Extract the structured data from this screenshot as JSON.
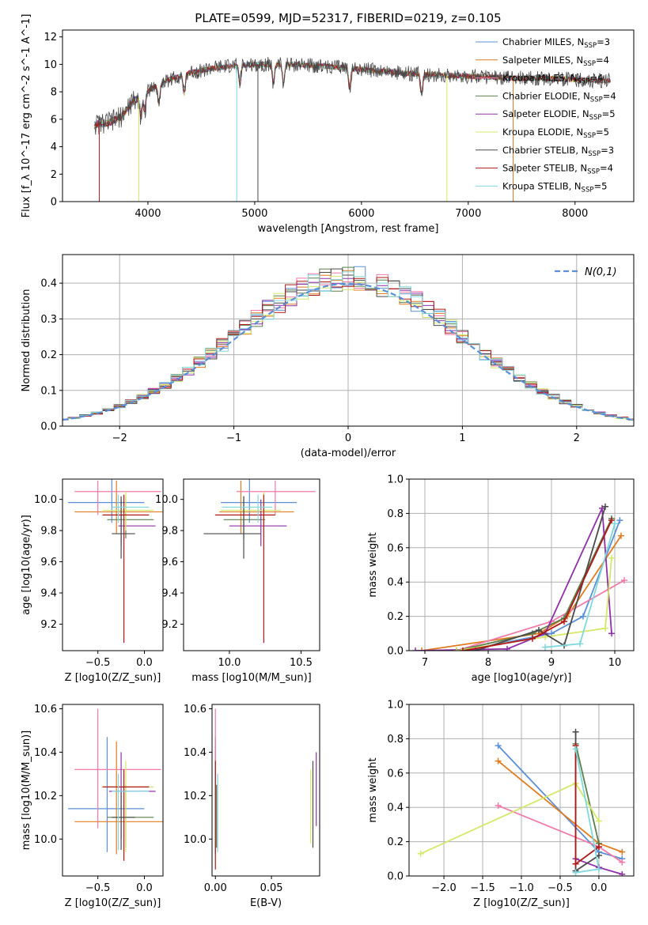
{
  "title": "PLATE=0599, MJD=52317, FIBERID=0219, z=0.105",
  "colors": {
    "Chabrier MILES": "#5b8fd6",
    "Salpeter MILES": "#e07b20",
    "Kroupa MILES": "#f07aa8",
    "Chabrier ELODIE": "#5c7f4e",
    "Salpeter ELODIE": "#9030a8",
    "Kroupa ELODIE": "#d5e86a",
    "Chabrier STELIB": "#4a4a4a",
    "Salpeter STELIB": "#b01818",
    "Kroupa STELIB": "#7fd8dc",
    "normal": "#5b8fd6"
  },
  "chart_data": [
    {
      "id": "spectrum",
      "type": "line",
      "xlabel": "wavelength [Angstrom, rest frame]",
      "ylabel": "Flux [f_λ 10^-17 erg cm^-2 s^-1 A^-1]",
      "xlim": [
        3200,
        8550
      ],
      "ylim": [
        0,
        12.5
      ],
      "xticks": [
        4000,
        5000,
        6000,
        7000,
        8000
      ],
      "yticks": [
        0,
        2,
        4,
        6,
        8,
        10,
        12
      ],
      "continuum": {
        "x": [
          3500,
          3650,
          3750,
          3850,
          3950,
          4050,
          4200,
          4400,
          4600,
          4800,
          5000,
          5300,
          5600,
          5900,
          6200,
          6500,
          6800,
          7100,
          7400,
          7700,
          8000,
          8300
        ],
        "y": [
          5.6,
          5.8,
          6.2,
          7.2,
          7.8,
          8.3,
          8.9,
          9.4,
          9.7,
          9.9,
          10.0,
          10.0,
          9.9,
          9.7,
          9.5,
          9.3,
          9.2,
          9.1,
          9.0,
          9.0,
          8.9,
          8.8
        ]
      },
      "legend_position": "upper-right",
      "series": [
        {
          "name": "Chabrier MILES, N_SSP=3",
          "label_main": "Chabrier MILES, N",
          "label_sub": "SSP",
          "label_end": "=3",
          "color_key": "Chabrier MILES"
        },
        {
          "name": "Salpeter MILES, N_SSP=4",
          "label_main": "Salpeter MILES, N",
          "label_sub": "SSP",
          "label_end": "=4",
          "color_key": "Salpeter MILES"
        },
        {
          "name": "Kroupa MILES, N_SSP=4",
          "label_main": "Kroupa MILES, N",
          "label_sub": "SSP",
          "label_end": "=4",
          "color_key": "Kroupa MILES"
        },
        {
          "name": "Chabrier ELODIE, N_SSP=4",
          "label_main": "Chabrier ELODIE, N",
          "label_sub": "SSP",
          "label_end": "=4",
          "color_key": "Chabrier ELODIE"
        },
        {
          "name": "Salpeter ELODIE, N_SSP=5",
          "label_main": "Salpeter ELODIE, N",
          "label_sub": "SSP",
          "label_end": "=5",
          "color_key": "Salpeter ELODIE"
        },
        {
          "name": "Kroupa ELODIE, N_SSP=5",
          "label_main": "Kroupa ELODIE, N",
          "label_sub": "SSP",
          "label_end": "=5",
          "color_key": "Kroupa ELODIE"
        },
        {
          "name": "Chabrier STELIB, N_SSP=3",
          "label_main": "Chabrier STELIB, N",
          "label_sub": "SSP",
          "label_end": "=3",
          "color_key": "Chabrier STELIB"
        },
        {
          "name": "Salpeter STELIB, N_SSP=4",
          "label_main": "Salpeter STELIB, N",
          "label_sub": "SSP",
          "label_end": "=4",
          "color_key": "Salpeter STELIB"
        },
        {
          "name": "Kroupa STELIB, N_SSP=5",
          "label_main": "Kroupa STELIB, N",
          "label_sub": "SSP",
          "label_end": "=5",
          "color_key": "Kroupa STELIB"
        }
      ]
    },
    {
      "id": "residuals",
      "type": "histogram",
      "xlabel": "(data-model)/error",
      "ylabel": "Normed distribution",
      "xlim": [
        -2.5,
        2.5
      ],
      "ylim": [
        0,
        0.48
      ],
      "xticks": [
        -2,
        -1,
        0,
        1,
        2
      ],
      "yticks": [
        0.0,
        0.1,
        0.2,
        0.3,
        0.4
      ],
      "bin_width": 0.1,
      "legend": "N(0,1)",
      "legend_position": "upper-right",
      "grid": true
    },
    {
      "id": "age_vs_Z",
      "type": "errorbar",
      "xlabel": "Z [log10(Z/Z_sun)]",
      "ylabel": "age [log10(age/yr)]",
      "xlim": [
        -0.88,
        0.2
      ],
      "ylim": [
        9.03,
        10.13
      ],
      "xticks": [
        -0.5,
        0.0
      ],
      "yticks": [
        9.2,
        9.4,
        9.6,
        9.8,
        10.0
      ],
      "points": [
        {
          "model": "Chabrier MILES",
          "x": -0.35,
          "xlo": -0.82,
          "xhi": 0.0,
          "y": 9.98,
          "ylo": 9.85,
          "yhi": 10.13
        },
        {
          "model": "Salpeter MILES",
          "x": -0.3,
          "xlo": -0.75,
          "xhi": 0.2,
          "y": 9.92,
          "ylo": 9.78,
          "yhi": 10.12
        },
        {
          "model": "Kroupa MILES",
          "x": -0.5,
          "xlo": -0.75,
          "xhi": 0.18,
          "y": 10.05,
          "ylo": 9.9,
          "yhi": 10.12
        },
        {
          "model": "Chabrier ELODIE",
          "x": -0.2,
          "xlo": -0.4,
          "xhi": 0.1,
          "y": 9.87,
          "ylo": 9.75,
          "yhi": 10.02
        },
        {
          "model": "Salpeter ELODIE",
          "x": -0.25,
          "xlo": -0.28,
          "xhi": 0.12,
          "y": 9.83,
          "ylo": 9.7,
          "yhi": 10.0
        },
        {
          "model": "Kroupa ELODIE",
          "x": -0.2,
          "xlo": -0.45,
          "xhi": 0.1,
          "y": 9.93,
          "ylo": 9.8,
          "yhi": 10.05
        },
        {
          "model": "Chabrier STELIB",
          "x": -0.25,
          "xlo": -0.35,
          "xhi": -0.1,
          "y": 9.78,
          "ylo": 9.62,
          "yhi": 10.02
        },
        {
          "model": "Salpeter STELIB",
          "x": -0.22,
          "xlo": -0.45,
          "xhi": 0.05,
          "y": 9.9,
          "ylo": 9.08,
          "yhi": 10.03
        },
        {
          "model": "Kroupa STELIB",
          "x": -0.28,
          "xlo": -0.35,
          "xhi": 0.05,
          "y": 9.95,
          "ylo": 9.85,
          "yhi": 10.03
        }
      ]
    },
    {
      "id": "age_vs_mass",
      "type": "errorbar",
      "xlabel": "mass [log10(M/M_sun)]",
      "ylabel": "",
      "xlim": [
        9.68,
        10.63
      ],
      "ylim": [
        9.03,
        10.13
      ],
      "xticks": [
        10.0,
        10.5
      ],
      "yticks": [
        9.2,
        9.4,
        9.6,
        9.8,
        10.0
      ],
      "points": [
        {
          "model": "Chabrier MILES",
          "x": 10.14,
          "xlo": 9.94,
          "xhi": 10.47,
          "y": 9.98,
          "ylo": 9.85,
          "yhi": 10.13
        },
        {
          "model": "Salpeter MILES",
          "x": 10.08,
          "xlo": 9.93,
          "xhi": 10.45,
          "y": 9.92,
          "ylo": 9.78,
          "yhi": 10.12
        },
        {
          "model": "Kroupa MILES",
          "x": 10.32,
          "xlo": 10.05,
          "xhi": 10.6,
          "y": 10.05,
          "ylo": 9.9,
          "yhi": 10.12
        },
        {
          "model": "Chabrier ELODIE",
          "x": 10.1,
          "xlo": 9.96,
          "xhi": 10.25,
          "y": 9.87,
          "ylo": 9.75,
          "yhi": 10.02
        },
        {
          "model": "Salpeter ELODIE",
          "x": 10.22,
          "xlo": 10.0,
          "xhi": 10.4,
          "y": 9.83,
          "ylo": 9.7,
          "yhi": 10.0
        },
        {
          "model": "Kroupa ELODIE",
          "x": 10.24,
          "xlo": 9.94,
          "xhi": 10.36,
          "y": 9.93,
          "ylo": 9.8,
          "yhi": 10.05
        },
        {
          "model": "Chabrier STELIB",
          "x": 10.1,
          "xlo": 9.82,
          "xhi": 10.22,
          "y": 9.78,
          "ylo": 9.62,
          "yhi": 10.02
        },
        {
          "model": "Salpeter STELIB",
          "x": 10.24,
          "xlo": 9.9,
          "xhi": 10.32,
          "y": 9.9,
          "ylo": 9.08,
          "yhi": 10.03
        },
        {
          "model": "Kroupa STELIB",
          "x": 10.2,
          "xlo": 9.95,
          "xhi": 10.3,
          "y": 9.95,
          "ylo": 9.85,
          "yhi": 10.03
        }
      ]
    },
    {
      "id": "weight_vs_age",
      "type": "line",
      "xlabel": "age [log10(age/yr)]",
      "ylabel": "mass weight",
      "xlim": [
        6.75,
        10.3
      ],
      "ylim": [
        0,
        1.0
      ],
      "xticks": [
        7,
        8,
        9,
        10
      ],
      "yticks": [
        0.0,
        0.2,
        0.4,
        0.6,
        0.8,
        1.0
      ],
      "grid": true,
      "series": [
        {
          "model": "Chabrier MILES",
          "x": [
            7.6,
            9.0,
            9.5,
            10.08
          ],
          "y": [
            0.0,
            0.1,
            0.2,
            0.76
          ]
        },
        {
          "model": "Salpeter MILES",
          "x": [
            6.95,
            8.8,
            9.25,
            10.1
          ],
          "y": [
            0.0,
            0.1,
            0.2,
            0.67
          ]
        },
        {
          "model": "Kroupa MILES",
          "x": [
            7.5,
            9.0,
            10.15
          ],
          "y": [
            0.0,
            0.17,
            0.41
          ]
        },
        {
          "model": "Chabrier ELODIE",
          "x": [
            7.5,
            8.7,
            9.2,
            9.95
          ],
          "y": [
            0.0,
            0.1,
            0.19,
            0.77
          ]
        },
        {
          "model": "Salpeter ELODIE",
          "x": [
            6.85,
            8.3,
            8.9,
            9.8,
            9.95
          ],
          "y": [
            0.0,
            0.01,
            0.1,
            0.83,
            0.1
          ]
        },
        {
          "model": "Kroupa ELODIE",
          "x": [
            7.5,
            8.9,
            9.85,
            9.95
          ],
          "y": [
            0.0,
            0.08,
            0.13,
            0.54
          ]
        },
        {
          "model": "Chabrier STELIB",
          "x": [
            7.8,
            8.8,
            9.2,
            9.85
          ],
          "y": [
            0.0,
            0.12,
            0.03,
            0.84
          ]
        },
        {
          "model": "Salpeter STELIB",
          "x": [
            7.6,
            8.7,
            9.2,
            9.95
          ],
          "y": [
            0.0,
            0.07,
            0.17,
            0.76
          ]
        },
        {
          "model": "Kroupa STELIB",
          "x": [
            8.9,
            9.45,
            10.0
          ],
          "y": [
            0.02,
            0.04,
            0.74
          ]
        }
      ]
    },
    {
      "id": "mass_vs_Z",
      "type": "errorbar",
      "xlabel": "Z [log10(Z/Z_sun)]",
      "ylabel": "mass [log10(M/M_sun)]",
      "xlim": [
        -0.88,
        0.2
      ],
      "ylim": [
        9.83,
        10.62
      ],
      "xticks": [
        -0.5,
        0.0
      ],
      "yticks": [
        10.0,
        10.2,
        10.4,
        10.6
      ],
      "points": [
        {
          "model": "Chabrier MILES",
          "x": -0.4,
          "xlo": -0.82,
          "xhi": 0.0,
          "y": 10.14,
          "ylo": 9.94,
          "yhi": 10.47
        },
        {
          "model": "Salpeter MILES",
          "x": -0.3,
          "xlo": -0.75,
          "xhi": 0.2,
          "y": 10.08,
          "ylo": 9.93,
          "yhi": 10.45
        },
        {
          "model": "Kroupa MILES",
          "x": -0.5,
          "xlo": -0.75,
          "xhi": 0.18,
          "y": 10.32,
          "ylo": 10.05,
          "yhi": 10.6
        },
        {
          "model": "Chabrier ELODIE",
          "x": -0.2,
          "xlo": -0.4,
          "xhi": 0.1,
          "y": 10.1,
          "ylo": 9.96,
          "yhi": 10.25
        },
        {
          "model": "Salpeter ELODIE",
          "x": -0.25,
          "xlo": -0.38,
          "xhi": 0.12,
          "y": 10.22,
          "ylo": 10.0,
          "yhi": 10.4
        },
        {
          "model": "Kroupa ELODIE",
          "x": -0.2,
          "xlo": -0.45,
          "xhi": 0.1,
          "y": 10.24,
          "ylo": 9.94,
          "yhi": 10.36
        },
        {
          "model": "Chabrier STELIB",
          "x": -0.25,
          "xlo": -0.35,
          "xhi": -0.1,
          "y": 10.1,
          "ylo": 9.95,
          "yhi": 10.22
        },
        {
          "model": "Salpeter STELIB",
          "x": -0.22,
          "xlo": -0.45,
          "xhi": 0.05,
          "y": 10.24,
          "ylo": 9.9,
          "yhi": 10.32
        },
        {
          "model": "Kroupa STELIB",
          "x": -0.28,
          "xlo": -0.35,
          "xhi": 0.05,
          "y": 10.22,
          "ylo": 9.95,
          "yhi": 10.3
        }
      ]
    },
    {
      "id": "mass_vs_ebv",
      "type": "errorbar",
      "xlabel": "E(B-V)",
      "ylabel": "",
      "xlim": [
        -0.003,
        0.093
      ],
      "ylim": [
        9.83,
        10.62
      ],
      "xticks": [
        0.0,
        0.05
      ],
      "yticks": [
        10.0,
        10.2,
        10.4,
        10.6
      ],
      "points": [
        {
          "model": "Chabrier MILES",
          "x": 0.0,
          "y": 10.14,
          "ylo": 9.94,
          "yhi": 10.47
        },
        {
          "model": "Salpeter MILES",
          "x": 0.0,
          "y": 10.08,
          "ylo": 9.93,
          "yhi": 10.45
        },
        {
          "model": "Kroupa MILES",
          "x": 0.0,
          "y": 10.32,
          "ylo": 10.05,
          "yhi": 10.6
        },
        {
          "model": "Chabrier ELODIE",
          "x": 0.001,
          "y": 10.1,
          "ylo": 9.96,
          "yhi": 10.25
        },
        {
          "model": "Salpeter ELODIE",
          "x": 0.09,
          "y": 10.22,
          "ylo": 10.06,
          "yhi": 10.4
        },
        {
          "model": "Kroupa ELODIE",
          "x": 0.085,
          "y": 10.24,
          "ylo": 9.98,
          "yhi": 10.32
        },
        {
          "model": "Chabrier STELIB",
          "x": 0.087,
          "y": 10.1,
          "ylo": 9.96,
          "yhi": 10.36
        },
        {
          "model": "Salpeter STELIB",
          "x": 0.0,
          "y": 10.24,
          "ylo": 9.86,
          "yhi": 10.36
        },
        {
          "model": "Kroupa STELIB",
          "x": 0.002,
          "y": 10.22,
          "ylo": 9.94,
          "yhi": 10.3
        }
      ]
    },
    {
      "id": "weight_vs_Z",
      "type": "line",
      "xlabel": "Z [log10(Z/Z_sun)]",
      "ylabel": "mass weight",
      "xlim": [
        -2.45,
        0.45
      ],
      "ylim": [
        0,
        1.0
      ],
      "xticks": [
        -2.0,
        -1.5,
        -1.0,
        -0.5,
        0.0
      ],
      "yticks": [
        0.0,
        0.2,
        0.4,
        0.6,
        0.8,
        1.0
      ],
      "grid": true,
      "series": [
        {
          "model": "Chabrier MILES",
          "x": [
            -1.3,
            0.0,
            0.3
          ],
          "y": [
            0.76,
            0.14,
            0.1
          ]
        },
        {
          "model": "Salpeter MILES",
          "x": [
            -1.3,
            0.0,
            0.3
          ],
          "y": [
            0.67,
            0.19,
            0.14
          ]
        },
        {
          "model": "Kroupa MILES",
          "x": [
            -1.3,
            0.0,
            0.3
          ],
          "y": [
            0.41,
            0.17,
            0.08
          ]
        },
        {
          "model": "Chabrier ELODIE",
          "x": [
            -0.3,
            0.0
          ],
          "y": [
            0.77,
            0.19
          ]
        },
        {
          "model": "Salpeter ELODIE",
          "x": [
            -0.3,
            0.0,
            0.3
          ],
          "y": [
            0.1,
            0.05,
            0.01
          ]
        },
        {
          "model": "Kroupa ELODIE",
          "x": [
            -2.3,
            -0.3,
            0.0
          ],
          "y": [
            0.13,
            0.54,
            0.32
          ]
        },
        {
          "model": "Chabrier STELIB",
          "x": [
            -0.3,
            -0.3,
            0.0
          ],
          "y": [
            0.84,
            0.03,
            0.12
          ]
        },
        {
          "model": "Salpeter STELIB",
          "x": [
            -0.3,
            -0.3,
            0.0
          ],
          "y": [
            0.76,
            0.07,
            0.17
          ]
        },
        {
          "model": "Kroupa STELIB",
          "x": [
            -0.3,
            0.0,
            -0.3
          ],
          "y": [
            0.74,
            0.04,
            0.02
          ]
        }
      ]
    }
  ]
}
